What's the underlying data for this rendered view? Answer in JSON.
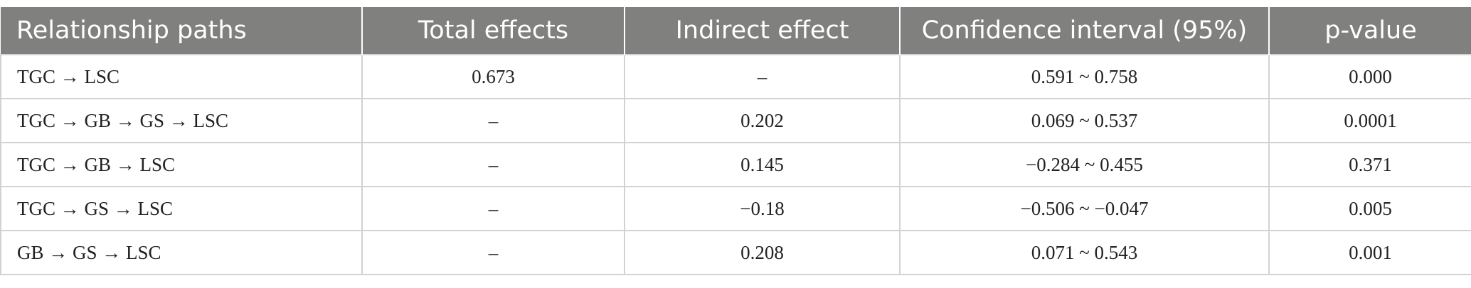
{
  "table": {
    "header": [
      "Relationship paths",
      "Total effects",
      "Indirect effect",
      "Confidence interval (95%)",
      "p-value"
    ],
    "rows": [
      [
        "TGC → LSC",
        "0.673",
        "–",
        "0.591 ~ 0.758",
        "0.000"
      ],
      [
        "TGC → GB → GS → LSC",
        "–",
        "0.202",
        "0.069 ~ 0.537",
        "0.0001"
      ],
      [
        "TGC → GB → LSC",
        "–",
        "0.145",
        "−0.284 ~ 0.455",
        "0.371"
      ],
      [
        "TGC → GS → LSC",
        "–",
        "−0.18",
        "−0.506 ~ −0.047",
        "0.005"
      ],
      [
        "GB → GS → LSC",
        "–",
        "0.208",
        "0.071 ~ 0.543",
        "0.001"
      ]
    ]
  }
}
